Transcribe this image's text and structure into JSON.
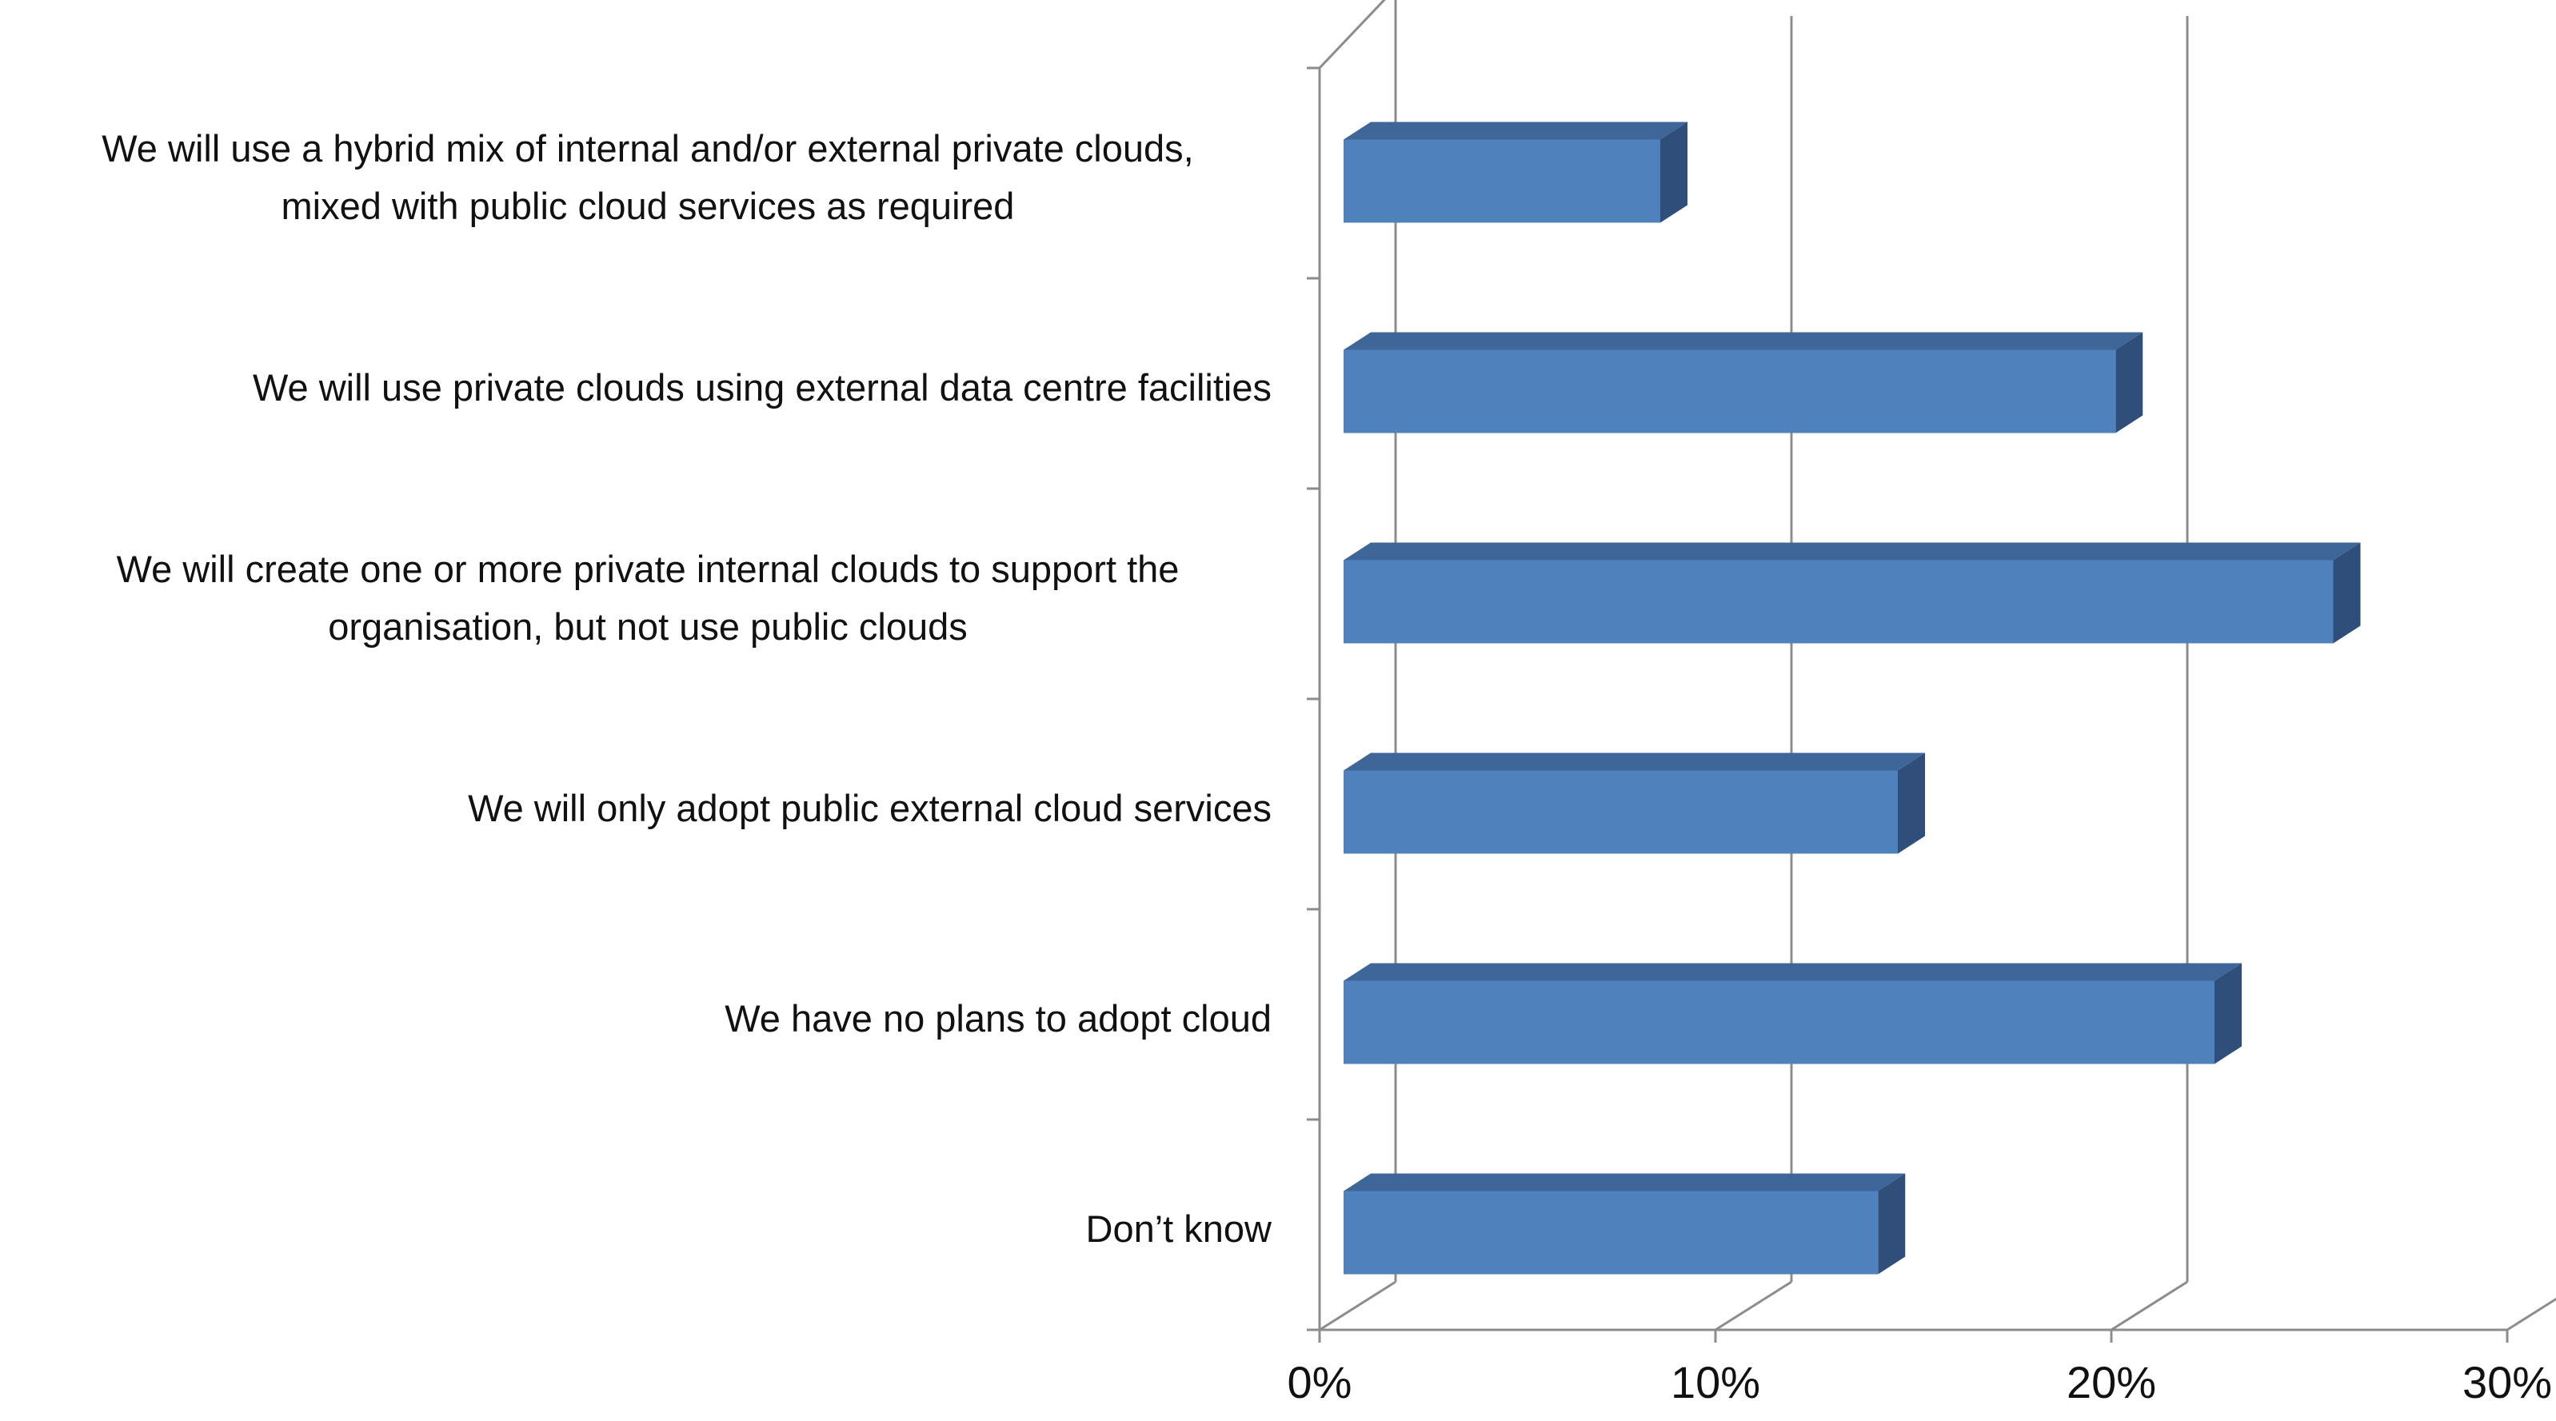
{
  "chart_data": {
    "type": "bar",
    "orientation": "horizontal",
    "style": "3d",
    "categories": [
      [
        "We will use  a hybrid mix of internal and/or external private clouds,",
        "mixed with public cloud services as required"
      ],
      [
        "We will use  private clouds using external data centre facilities"
      ],
      [
        "We will create one or more private internal clouds to support the",
        "organisation, but not use public clouds"
      ],
      [
        "We will only adopt public external cloud services"
      ],
      [
        "We have no plans to adopt cloud"
      ],
      [
        "Don’t know"
      ]
    ],
    "values": [
      8,
      19.5,
      25,
      14,
      22,
      13.5
    ],
    "xlim": [
      0,
      30
    ],
    "xticks": [
      0,
      10,
      20,
      30
    ],
    "xtick_labels": [
      "0%",
      "10%",
      "20%",
      "30%"
    ],
    "grid": true,
    "legend": "none",
    "bar_color": "#4F81BD",
    "bar_top_color": "#3E6699",
    "bar_side_color": "#2F4F7A",
    "grid_color": "#8C8C8C"
  }
}
